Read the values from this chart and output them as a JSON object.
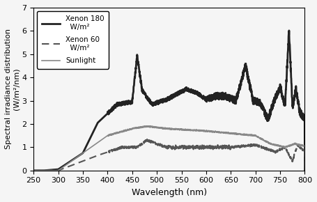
{
  "title": "",
  "xlabel": "Wavelength (nm)",
  "ylabel": "Spectral irradiance distribution\n(W/m²/nm)",
  "xlim": [
    250,
    800
  ],
  "ylim": [
    0,
    7
  ],
  "yticks": [
    0,
    1,
    2,
    3,
    4,
    5,
    6,
    7
  ],
  "xticks": [
    250,
    300,
    350,
    400,
    450,
    500,
    550,
    600,
    650,
    700,
    750,
    800
  ],
  "legend": [
    {
      "label": "Xenon 180\n  W/m²",
      "linestyle": "solid",
      "linewidth": 2.0,
      "color": "#222222"
    },
    {
      "label": "Xenon 60\n  W/m²",
      "linestyle": "dashed",
      "linewidth": 1.5,
      "color": "#555555"
    },
    {
      "label": "Sunlight",
      "linestyle": "solid",
      "linewidth": 1.2,
      "color": "#888888"
    }
  ],
  "background_color": "#f0f0f0"
}
